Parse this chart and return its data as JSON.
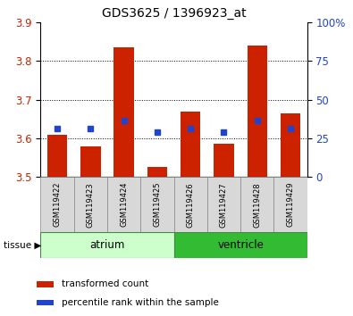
{
  "title": "GDS3625 / 1396923_at",
  "samples": [
    "GSM119422",
    "GSM119423",
    "GSM119424",
    "GSM119425",
    "GSM119426",
    "GSM119427",
    "GSM119428",
    "GSM119429"
  ],
  "bar_bottom": 3.5,
  "bar_tops": [
    3.61,
    3.58,
    3.835,
    3.525,
    3.67,
    3.585,
    3.84,
    3.665
  ],
  "blue_values": [
    3.625,
    3.625,
    3.645,
    3.615,
    3.625,
    3.615,
    3.645,
    3.625
  ],
  "ylim": [
    3.5,
    3.9
  ],
  "yticks_left": [
    3.5,
    3.6,
    3.7,
    3.8,
    3.9
  ],
  "yticks_right": [
    0,
    25,
    50,
    75,
    100
  ],
  "bar_color": "#cc2200",
  "blue_color": "#2244cc",
  "atrium_light": "#ccffcc",
  "atrium_dark": "#44cc44",
  "ventricle_dark": "#33bb33",
  "tissue_label": "tissue",
  "atrium_label": "atrium",
  "ventricle_label": "ventricle",
  "legend_bar_label": "transformed count",
  "legend_blue_label": "percentile rank within the sample",
  "bar_width": 0.6,
  "blue_marker_size": 5
}
